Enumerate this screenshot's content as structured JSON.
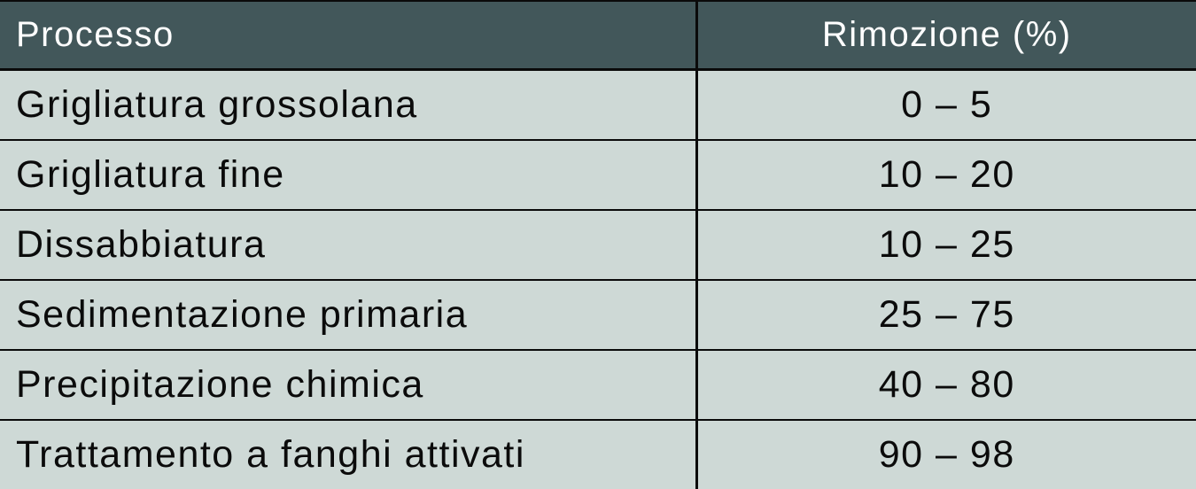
{
  "table": {
    "columns": [
      {
        "label": "Processo"
      },
      {
        "label": "Rimozione (%)"
      }
    ],
    "rows": [
      {
        "process": "Grigliatura grossolana",
        "removal": "0 – 5"
      },
      {
        "process": "Grigliatura fine",
        "removal": "10 – 20"
      },
      {
        "process": "Dissabbiatura",
        "removal": "10 – 25"
      },
      {
        "process": "Sedimentazione primaria",
        "removal": "25 – 75"
      },
      {
        "process": "Precipitazione chimica",
        "removal": "40 – 80"
      },
      {
        "process": "Trattamento a fanghi attivati",
        "removal": "90 – 98"
      }
    ]
  },
  "colors": {
    "header_background": "#42575a",
    "header_text": "#ffffff",
    "body_background": "#ced9d6",
    "body_text": "#0b0b0b",
    "border": "#0a0a0a"
  }
}
